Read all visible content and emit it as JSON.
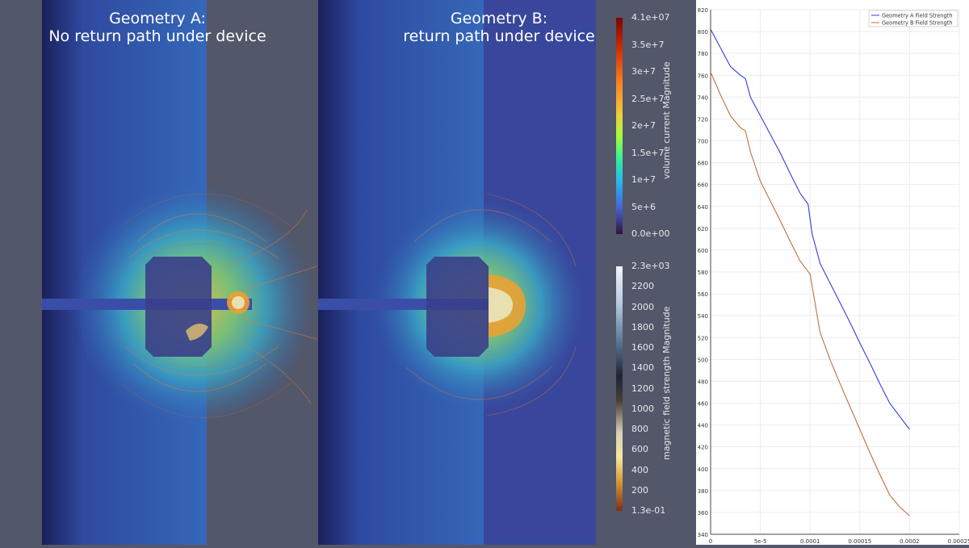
{
  "viewport_a": {
    "title_line1": "Geometry A:",
    "title_line2": "No return path under device"
  },
  "viewport_b": {
    "title_line1": "Geometry B:",
    "title_line2": "return path under device"
  },
  "colorbar_current": {
    "title": "volume current Magnitude",
    "labels": [
      "4.1e+07",
      "3.5e+7",
      "3e+7",
      "2.5e+7",
      "2e+7",
      "1.5e+7",
      "1e+7",
      "5e+6",
      "0.0e+00"
    ]
  },
  "colorbar_field": {
    "title": "magnetic field strength Magnitude",
    "labels": [
      "2.3e+03",
      "2200",
      "2000",
      "1800",
      "1600",
      "1400",
      "1200",
      "1000",
      "800",
      "600",
      "400",
      "200",
      "1.3e-01"
    ]
  },
  "colors": {
    "background": "#525769",
    "conductor_a": "#3567b8",
    "conductor_b": "#38479b",
    "series_a": "#2f3fd8",
    "series_b": "#c0703a"
  },
  "chart_data": {
    "type": "line",
    "title": "",
    "xlabel": "",
    "ylabel": "",
    "xlim": [
      0,
      0.00025
    ],
    "ylim": [
      340,
      820
    ],
    "x_ticks": [
      "0",
      "5e-5",
      "0.0001",
      "0.00015",
      "0.0002",
      "0.00025"
    ],
    "y_ticks": [
      "340",
      "360",
      "380",
      "400",
      "420",
      "440",
      "460",
      "480",
      "500",
      "520",
      "540",
      "560",
      "580",
      "600",
      "620",
      "640",
      "660",
      "680",
      "700",
      "720",
      "740",
      "760",
      "780",
      "800",
      "820"
    ],
    "legend_position": "top-right",
    "series": [
      {
        "name": "Geometry A Field Strength",
        "x": [
          0,
          1e-05,
          2e-05,
          3e-05,
          3.5e-05,
          4e-05,
          5e-05,
          6e-05,
          7e-05,
          8e-05,
          9e-05,
          9.8e-05,
          0.000102,
          0.00011,
          0.00012,
          0.00013,
          0.00014,
          0.00015,
          0.00016,
          0.00017,
          0.00018,
          0.00019,
          0.0002
        ],
        "y": [
          802,
          785,
          768,
          760,
          757,
          740,
          723,
          706,
          689,
          670,
          652,
          642,
          615,
          588,
          570,
          552,
          534,
          515,
          497,
          478,
          460,
          448,
          436
        ]
      },
      {
        "name": "Geometry B Field Strength",
        "x": [
          0,
          1e-05,
          2e-05,
          3e-05,
          3.5e-05,
          4e-05,
          5e-05,
          6e-05,
          7e-05,
          8e-05,
          9e-05,
          0.0001,
          0.00011,
          0.00012,
          0.00013,
          0.00014,
          0.00015,
          0.00016,
          0.00017,
          0.00018,
          0.00019,
          0.0002
        ],
        "y": [
          763,
          742,
          723,
          712,
          709,
          690,
          663,
          645,
          627,
          608,
          590,
          578,
          525,
          500,
          478,
          457,
          436,
          415,
          395,
          376,
          365,
          357
        ]
      }
    ]
  }
}
